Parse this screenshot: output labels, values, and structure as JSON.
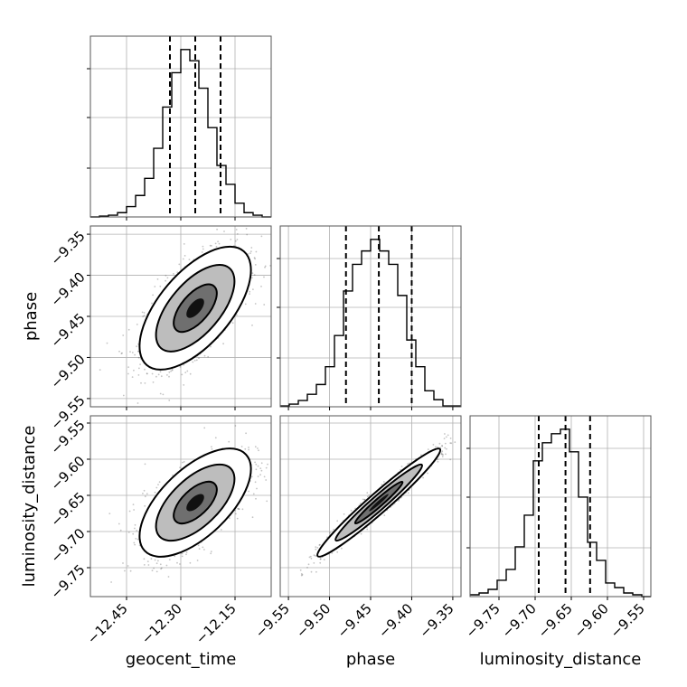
{
  "chart_data": [
    {
      "type": "histogram",
      "panel": "geocent_time",
      "x_param": "geocent_time",
      "xlim": [
        -12.55,
        -12.05
      ],
      "x_ticks": [
        -12.45,
        -12.3,
        -12.15
      ],
      "bins": [
        -12.55,
        -12.525,
        -12.5,
        -12.475,
        -12.45,
        -12.425,
        -12.4,
        -12.375,
        -12.35,
        -12.325,
        -12.3,
        -12.275,
        -12.25,
        -12.225,
        -12.2,
        -12.175,
        -12.15,
        -12.125,
        -12.1,
        -12.075,
        -12.05
      ],
      "counts": [
        0,
        1,
        2,
        5,
        12,
        25,
        45,
        80,
        128,
        168,
        195,
        182,
        150,
        104,
        60,
        38,
        16,
        5,
        2,
        0
      ],
      "quantiles": [
        -12.33,
        -12.26,
        -12.19
      ],
      "grid": true
    },
    {
      "type": "histogram",
      "panel": "phase",
      "x_param": "phase",
      "xlim": [
        -9.56,
        -9.34
      ],
      "x_ticks": [
        -9.55,
        -9.5,
        -9.45,
        -9.4,
        -9.35
      ],
      "bins": [
        -9.56,
        -9.549,
        -9.538,
        -9.527,
        -9.516,
        -9.505,
        -9.494,
        -9.483,
        -9.472,
        -9.461,
        -9.45,
        -9.439,
        -9.428,
        -9.417,
        -9.406,
        -9.395,
        -9.384,
        -9.373,
        -9.362,
        -9.351,
        -9.34
      ],
      "counts": [
        1,
        3,
        7,
        14,
        25,
        45,
        80,
        130,
        160,
        175,
        188,
        175,
        160,
        125,
        75,
        45,
        18,
        8,
        1,
        1
      ],
      "quantiles": [
        -9.48,
        -9.44,
        -9.4
      ],
      "grid": true
    },
    {
      "type": "histogram",
      "panel": "luminosity_distance",
      "x_param": "luminosity_distance",
      "xlim": [
        -9.79,
        -9.54
      ],
      "x_ticks": [
        -9.75,
        -9.7,
        -9.65,
        -9.6,
        -9.55
      ],
      "bins": [
        -9.79,
        -9.7775,
        -9.765,
        -9.7525,
        -9.74,
        -9.7275,
        -9.715,
        -9.7025,
        -9.69,
        -9.6775,
        -9.665,
        -9.6525,
        -9.64,
        -9.6275,
        -9.615,
        -9.6025,
        -9.59,
        -9.5775,
        -9.565,
        -9.5525,
        -9.54
      ],
      "counts": [
        2,
        4,
        8,
        18,
        30,
        55,
        90,
        150,
        170,
        180,
        185,
        160,
        110,
        60,
        40,
        15,
        10,
        4,
        2,
        0
      ],
      "quantiles": [
        -9.695,
        -9.658,
        -9.624
      ],
      "grid": true
    },
    {
      "type": "scatter-density",
      "panel": "phase vs geocent_time",
      "x_param": "geocent_time",
      "y_param": "phase",
      "xlim": [
        -12.55,
        -12.05
      ],
      "ylim": [
        -9.56,
        -9.34
      ],
      "x_ticks": [
        -12.45,
        -12.3,
        -12.15
      ],
      "y_ticks": [
        -9.35,
        -9.4,
        -9.45,
        -9.5,
        -9.55
      ],
      "center": [
        -12.26,
        -9.44
      ],
      "std": [
        0.07,
        0.034
      ],
      "correlation": 0.62,
      "grid": true
    },
    {
      "type": "scatter-density",
      "panel": "luminosity_distance vs geocent_time",
      "x_param": "geocent_time",
      "y_param": "luminosity_distance",
      "xlim": [
        -12.55,
        -12.05
      ],
      "ylim": [
        -9.79,
        -9.54
      ],
      "x_ticks": [
        -12.45,
        -12.3,
        -12.15
      ],
      "y_ticks": [
        -9.55,
        -9.6,
        -9.65,
        -9.7,
        -9.75
      ],
      "center": [
        -12.26,
        -9.66
      ],
      "std": [
        0.07,
        0.034
      ],
      "correlation": 0.62,
      "grid": true
    },
    {
      "type": "scatter-density",
      "panel": "luminosity_distance vs phase",
      "x_param": "phase",
      "y_param": "luminosity_distance",
      "xlim": [
        -9.56,
        -9.34
      ],
      "ylim": [
        -9.79,
        -9.54
      ],
      "x_ticks": [
        -9.55,
        -9.5,
        -9.45,
        -9.4,
        -9.35
      ],
      "y_ticks": [
        -9.55,
        -9.6,
        -9.65,
        -9.7,
        -9.75
      ],
      "center": [
        -9.44,
        -9.66
      ],
      "std": [
        0.034,
        0.034
      ],
      "correlation": 0.97,
      "grid": true
    }
  ],
  "labels": {
    "x_geocent_time": "geocent_time",
    "x_phase": "phase",
    "x_luminosity_distance": "luminosity_distance",
    "y_phase": "phase",
    "y_luminosity_distance": "luminosity_distance"
  },
  "colors": {
    "line": "#000000",
    "grid": "#b0b0b0",
    "frame": "#555555",
    "scatter": "#555555"
  }
}
